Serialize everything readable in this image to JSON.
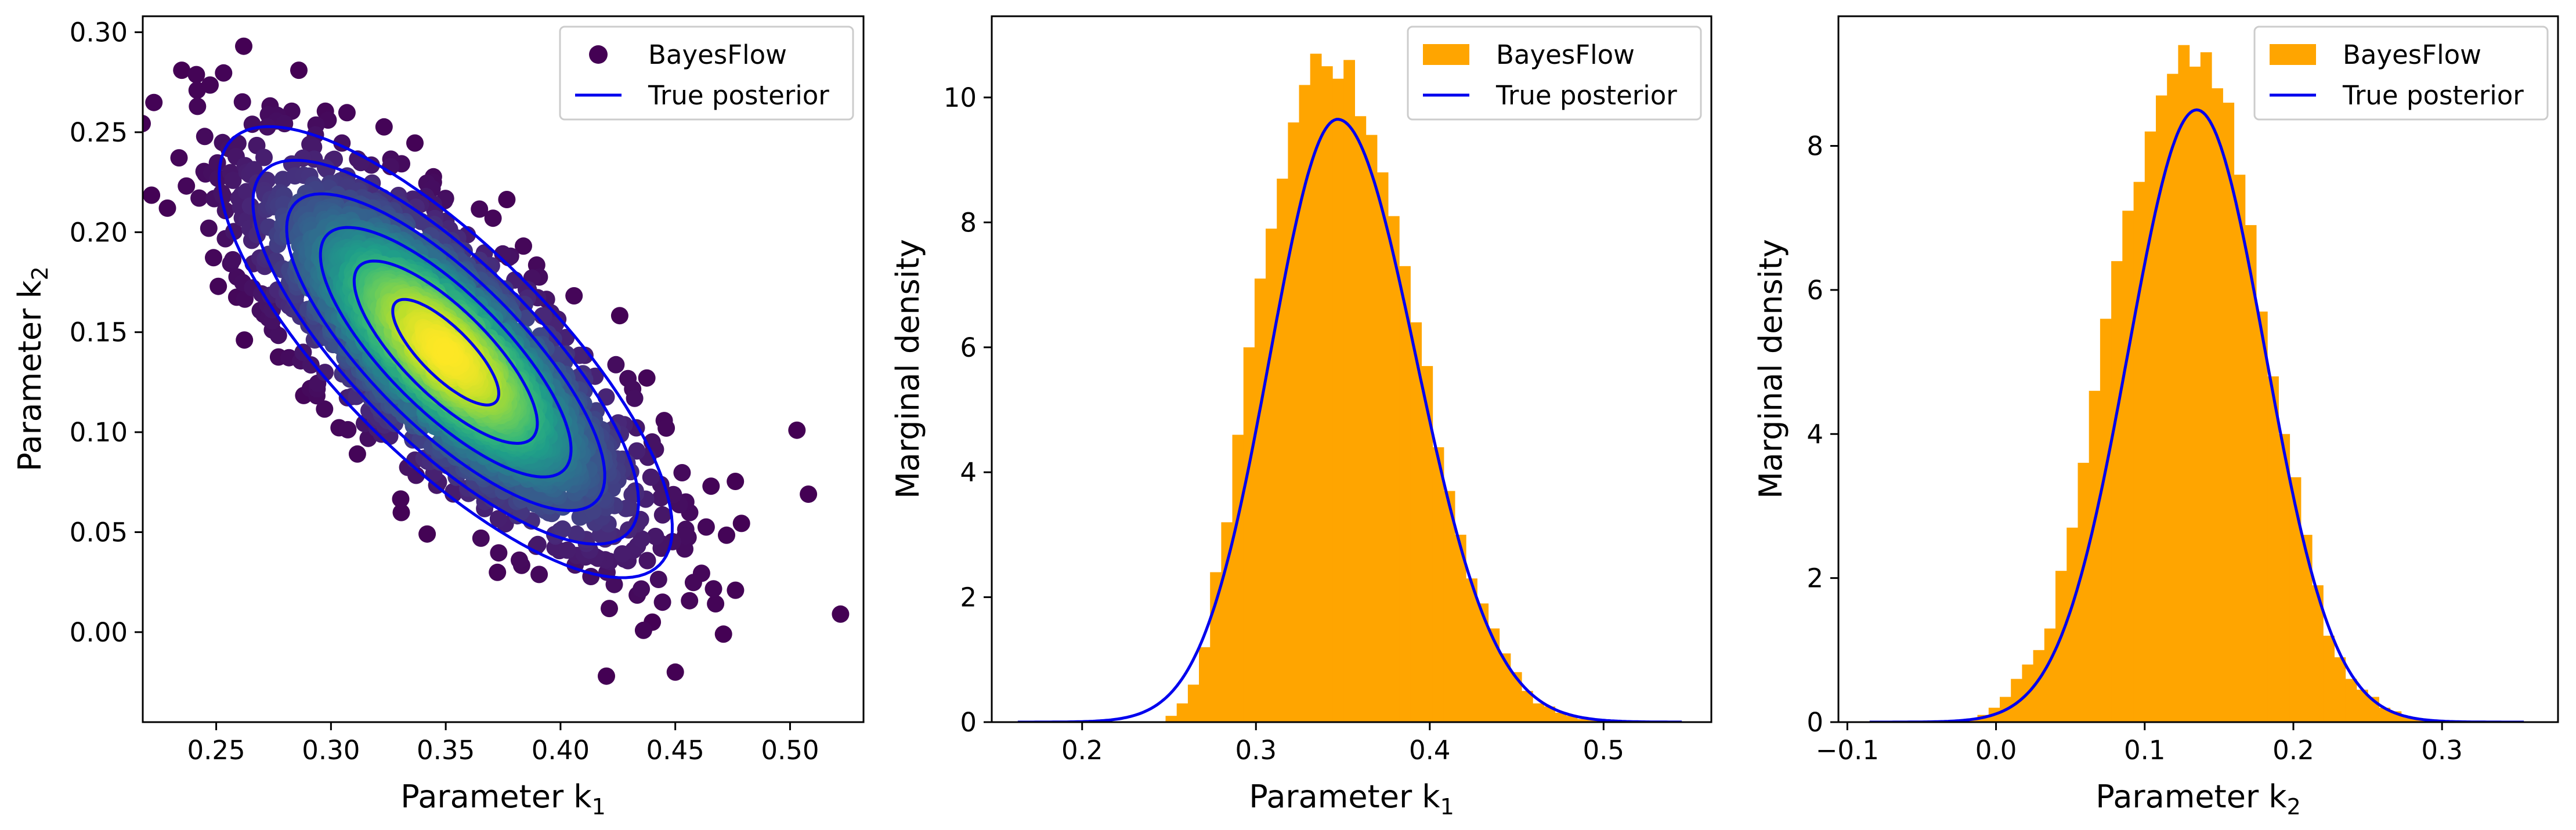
{
  "chart_data": [
    {
      "type": "scatter",
      "xlabel": "Parameter k",
      "xlabel_sub": "1",
      "ylabel": "Parameter k",
      "ylabel_sub": "2",
      "xlim": [
        0.218,
        0.532
      ],
      "ylim": [
        -0.045,
        0.308
      ],
      "xticks": [
        "0.25",
        "0.30",
        "0.35",
        "0.40",
        "0.45",
        "0.50"
      ],
      "yticks": [
        "0.00",
        "0.05",
        "0.10",
        "0.15",
        "0.20",
        "0.25",
        "0.30"
      ],
      "legend": {
        "placement": "top-right",
        "entries": [
          "BayesFlow",
          "True posterior"
        ]
      },
      "series": [
        {
          "name": "BayesFlow",
          "kind": "scatter",
          "color": "#440154",
          "colormap": "viridis",
          "mean": [
            0.35,
            0.14
          ],
          "std": [
            0.04,
            0.045
          ],
          "correlation": -0.75,
          "outliers": [
            [
              0.235,
              0.281
            ],
            [
              0.262,
              0.293
            ],
            [
              0.286,
              0.281
            ],
            [
              0.503,
              0.101
            ],
            [
              0.508,
              0.069
            ],
            [
              0.522,
              0.009
            ],
            [
              0.45,
              -0.02
            ],
            [
              0.42,
              -0.022
            ],
            [
              0.471,
              -0.001
            ],
            [
              0.44,
              0.005
            ]
          ]
        },
        {
          "name": "True posterior",
          "kind": "contour",
          "color": "#0000ee",
          "mean": [
            0.35,
            0.14
          ],
          "std": [
            0.042,
            0.048
          ],
          "correlation": -0.78,
          "levels": 6
        }
      ]
    },
    {
      "type": "bar",
      "xlabel": "Parameter k",
      "xlabel_sub": "1",
      "ylabel": "Marginal density",
      "xlim": [
        0.148,
        0.562
      ],
      "ylim": [
        0,
        11.3
      ],
      "xticks": [
        "0.2",
        "0.3",
        "0.4",
        "0.5"
      ],
      "yticks": [
        "0",
        "2",
        "4",
        "6",
        "8",
        "10"
      ],
      "legend": {
        "placement": "top-right",
        "entries": [
          "BayesFlow",
          "True posterior"
        ]
      },
      "series": [
        {
          "name": "BayesFlow",
          "kind": "histogram",
          "color": "#ffa500",
          "bin_edges": [
            0.248,
            0.2544,
            0.2608,
            0.2672,
            0.2736,
            0.28,
            0.2864,
            0.2928,
            0.2992,
            0.3056,
            0.312,
            0.3184,
            0.3248,
            0.3312,
            0.3376,
            0.344,
            0.3504,
            0.3568,
            0.3632,
            0.3696,
            0.376,
            0.3824,
            0.3888,
            0.3952,
            0.4016,
            0.408,
            0.4144,
            0.4208,
            0.4272,
            0.4336,
            0.44,
            0.4464,
            0.4528,
            0.4592,
            0.4656,
            0.472,
            0.4784,
            0.4848,
            0.4912,
            0.4976
          ],
          "densities": [
            0.1,
            0.3,
            0.6,
            1.2,
            2.4,
            3.2,
            4.6,
            6.0,
            7.1,
            7.9,
            8.7,
            9.6,
            10.2,
            10.7,
            10.5,
            10.3,
            10.6,
            9.7,
            9.4,
            8.8,
            8.1,
            7.3,
            6.4,
            5.7,
            4.4,
            3.7,
            3.0,
            2.3,
            1.9,
            1.5,
            1.1,
            0.8,
            0.5,
            0.3,
            0.25,
            0.15,
            0.1,
            0.05,
            0.03
          ]
        },
        {
          "name": "True posterior",
          "kind": "density",
          "color": "#0000ee",
          "x_range": [
            0.163,
            0.545
          ],
          "mode": 0.347,
          "peak": 9.65,
          "sigma_left": 0.039,
          "sigma_right": 0.045
        }
      ]
    },
    {
      "type": "bar",
      "xlabel": "Parameter k",
      "xlabel_sub": "2",
      "ylabel": "Marginal density",
      "xlim": [
        -0.106,
        0.378
      ],
      "ylim": [
        0,
        9.8
      ],
      "xticks": [
        "−0.1",
        "0.0",
        "0.1",
        "0.2",
        "0.3"
      ],
      "yticks": [
        "0",
        "2",
        "4",
        "6",
        "8"
      ],
      "legend": {
        "placement": "top-right",
        "entries": [
          "BayesFlow",
          "True posterior"
        ]
      },
      "series": [
        {
          "name": "BayesFlow",
          "kind": "histogram",
          "color": "#ffa500",
          "bin_edges": [
            -0.02,
            -0.0125,
            -0.005,
            0.0025,
            0.01,
            0.0175,
            0.025,
            0.0325,
            0.04,
            0.0475,
            0.055,
            0.0625,
            0.07,
            0.0775,
            0.085,
            0.0925,
            0.1,
            0.1075,
            0.115,
            0.1225,
            0.13,
            0.1375,
            0.145,
            0.1525,
            0.16,
            0.1675,
            0.175,
            0.1825,
            0.19,
            0.1975,
            0.205,
            0.2125,
            0.22,
            0.2275,
            0.235,
            0.2425,
            0.25,
            0.2575,
            0.265,
            0.2725,
            0.28,
            0.2875
          ],
          "densities": [
            0.05,
            0.1,
            0.2,
            0.35,
            0.6,
            0.8,
            1.0,
            1.3,
            2.1,
            2.7,
            3.6,
            4.6,
            5.6,
            6.4,
            7.1,
            7.5,
            8.2,
            8.7,
            9.0,
            9.4,
            9.1,
            9.3,
            8.8,
            8.6,
            7.6,
            6.9,
            5.7,
            4.8,
            4.0,
            3.4,
            2.6,
            1.9,
            1.2,
            0.9,
            0.6,
            0.45,
            0.35,
            0.2,
            0.15,
            0.08,
            0.04
          ]
        },
        {
          "name": "True posterior",
          "kind": "density",
          "color": "#0000ee",
          "x_range": [
            -0.085,
            0.355
          ],
          "mode": 0.135,
          "peak": 8.5,
          "sigma_left": 0.046,
          "sigma_right": 0.046
        }
      ]
    }
  ]
}
